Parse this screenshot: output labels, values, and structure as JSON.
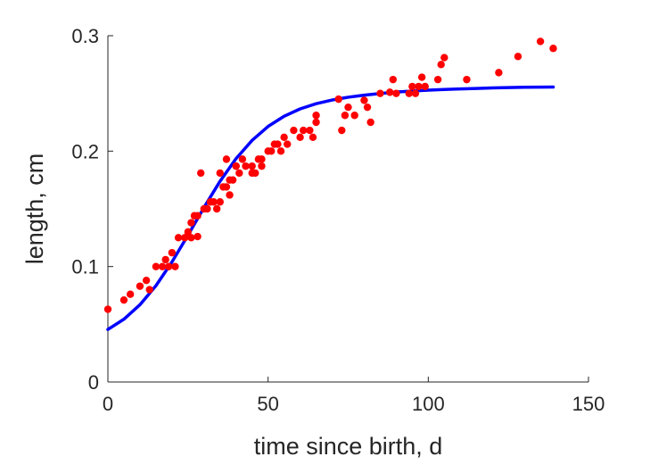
{
  "chart_data": {
    "type": "scatter",
    "title": "",
    "xlabel": "time since birth, d",
    "ylabel": "length, cm",
    "xlim": [
      0,
      150
    ],
    "ylim": [
      0,
      0.3
    ],
    "xticks": [
      0,
      50,
      100,
      150
    ],
    "xtick_labels": [
      "0",
      "50",
      "100",
      "150"
    ],
    "yticks": [
      0,
      0.1,
      0.2,
      0.3
    ],
    "ytick_labels": [
      "0",
      "0.1",
      "0.2",
      "0.3"
    ],
    "grid": false,
    "legend": "none",
    "series": [
      {
        "kind": "scatter",
        "color": "#ff0000",
        "points": [
          [
            0,
            0.063
          ],
          [
            5,
            0.071
          ],
          [
            7,
            0.076
          ],
          [
            10,
            0.083
          ],
          [
            12,
            0.088
          ],
          [
            13,
            0.08
          ],
          [
            15,
            0.1
          ],
          [
            17,
            0.1
          ],
          [
            18,
            0.106
          ],
          [
            19,
            0.1
          ],
          [
            20,
            0.112
          ],
          [
            21,
            0.1
          ],
          [
            22,
            0.125
          ],
          [
            24,
            0.125
          ],
          [
            25,
            0.13
          ],
          [
            26,
            0.125
          ],
          [
            26,
            0.138
          ],
          [
            27,
            0.144
          ],
          [
            28,
            0.144
          ],
          [
            28,
            0.126
          ],
          [
            29,
            0.181
          ],
          [
            30,
            0.15
          ],
          [
            31,
            0.15
          ],
          [
            32,
            0.156
          ],
          [
            33,
            0.156
          ],
          [
            34,
            0.15
          ],
          [
            35,
            0.181
          ],
          [
            35,
            0.156
          ],
          [
            36,
            0.169
          ],
          [
            37,
            0.169
          ],
          [
            37,
            0.193
          ],
          [
            38,
            0.175
          ],
          [
            38,
            0.162
          ],
          [
            39,
            0.175
          ],
          [
            40,
            0.187
          ],
          [
            40,
            0.187
          ],
          [
            41,
            0.181
          ],
          [
            42,
            0.193
          ],
          [
            43,
            0.187
          ],
          [
            45,
            0.187
          ],
          [
            45,
            0.181
          ],
          [
            46,
            0.181
          ],
          [
            47,
            0.193
          ],
          [
            48,
            0.187
          ],
          [
            48,
            0.193
          ],
          [
            50,
            0.2
          ],
          [
            51,
            0.2
          ],
          [
            52,
            0.206
          ],
          [
            53,
            0.206
          ],
          [
            54,
            0.2
          ],
          [
            55,
            0.212
          ],
          [
            56,
            0.206
          ],
          [
            58,
            0.218
          ],
          [
            60,
            0.212
          ],
          [
            61,
            0.218
          ],
          [
            63,
            0.218
          ],
          [
            64,
            0.212
          ],
          [
            65,
            0.225
          ],
          [
            65,
            0.231
          ],
          [
            72,
            0.245
          ],
          [
            73,
            0.218
          ],
          [
            74,
            0.231
          ],
          [
            75,
            0.238
          ],
          [
            77,
            0.231
          ],
          [
            80,
            0.244
          ],
          [
            81,
            0.238
          ],
          [
            82,
            0.225
          ],
          [
            85,
            0.25
          ],
          [
            88,
            0.251
          ],
          [
            89,
            0.262
          ],
          [
            90,
            0.25
          ],
          [
            94,
            0.25
          ],
          [
            95,
            0.256
          ],
          [
            96,
            0.25
          ],
          [
            97,
            0.256
          ],
          [
            98,
            0.264
          ],
          [
            99,
            0.256
          ],
          [
            103,
            0.262
          ],
          [
            104,
            0.275
          ],
          [
            105,
            0.281
          ],
          [
            112,
            0.262
          ],
          [
            122,
            0.268
          ],
          [
            128,
            0.282
          ],
          [
            135,
            0.295
          ],
          [
            139,
            0.289
          ]
        ]
      },
      {
        "kind": "line",
        "color": "#0000ff",
        "points": [
          [
            0,
            0.0455
          ],
          [
            5,
            0.0544
          ],
          [
            10,
            0.0669
          ],
          [
            15,
            0.0834
          ],
          [
            20,
            0.104
          ],
          [
            25,
            0.1272
          ],
          [
            30,
            0.1512
          ],
          [
            35,
            0.1739
          ],
          [
            40,
            0.1935
          ],
          [
            45,
            0.2093
          ],
          [
            50,
            0.2214
          ],
          [
            55,
            0.2302
          ],
          [
            60,
            0.2366
          ],
          [
            65,
            0.2411
          ],
          [
            70,
            0.2443
          ],
          [
            75,
            0.2467
          ],
          [
            80,
            0.2485
          ],
          [
            85,
            0.2499
          ],
          [
            90,
            0.2512
          ],
          [
            95,
            0.2521
          ],
          [
            100,
            0.2528
          ],
          [
            105,
            0.2534
          ],
          [
            110,
            0.2539
          ],
          [
            115,
            0.2543
          ],
          [
            120,
            0.2548
          ],
          [
            125,
            0.2551
          ],
          [
            130,
            0.2553
          ],
          [
            135,
            0.2554
          ],
          [
            139,
            0.2555
          ]
        ]
      }
    ]
  }
}
